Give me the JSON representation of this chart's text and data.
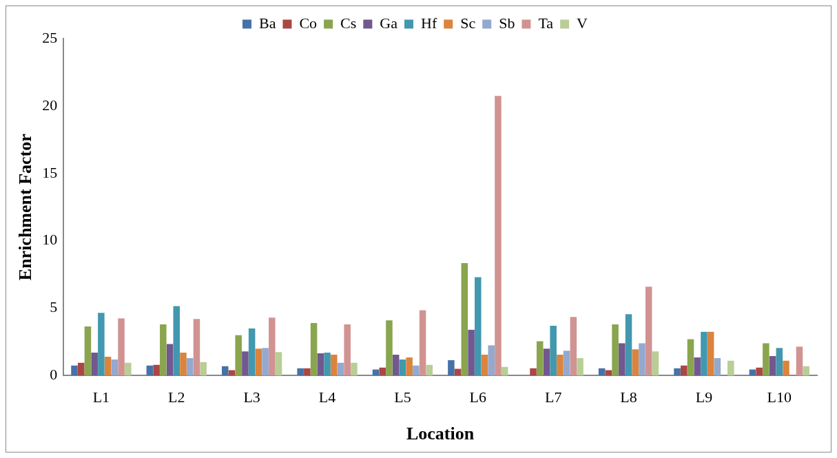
{
  "chart_data": {
    "type": "bar",
    "xlabel": "Location",
    "ylabel": "Enrichment Factor",
    "categories": [
      "L1",
      "L2",
      "L3",
      "L4",
      "L5",
      "L6",
      "L7",
      "L8",
      "L9",
      "L10"
    ],
    "series": [
      {
        "name": "Ba",
        "color": "#4572a7",
        "values": [
          0.75,
          0.75,
          0.7,
          0.55,
          0.45,
          1.15,
          null,
          0.55,
          0.55,
          0.45
        ]
      },
      {
        "name": "Co",
        "color": "#aa4643",
        "values": [
          0.95,
          0.8,
          0.4,
          0.55,
          0.6,
          0.5,
          0.55,
          0.4,
          0.75,
          0.6
        ]
      },
      {
        "name": "Cs",
        "color": "#89a54e",
        "values": [
          3.65,
          3.8,
          3.0,
          3.9,
          4.1,
          8.35,
          2.55,
          3.8,
          2.7,
          2.4
        ]
      },
      {
        "name": "Ga",
        "color": "#71588f",
        "values": [
          1.7,
          2.35,
          1.8,
          1.65,
          1.55,
          3.4,
          2.0,
          2.4,
          1.35,
          1.45
        ]
      },
      {
        "name": "Hf",
        "color": "#4198af",
        "values": [
          4.65,
          5.15,
          3.5,
          1.7,
          1.2,
          7.3,
          3.7,
          4.55,
          3.25,
          2.05
        ]
      },
      {
        "name": "Sc",
        "color": "#db843d",
        "values": [
          1.4,
          1.7,
          2.0,
          1.55,
          1.35,
          1.55,
          1.55,
          1.95,
          3.25,
          1.1
        ]
      },
      {
        "name": "Sb",
        "color": "#93a9cf",
        "values": [
          1.2,
          1.3,
          2.05,
          0.95,
          0.75,
          2.25,
          1.85,
          2.4,
          1.3,
          null
        ]
      },
      {
        "name": "Ta",
        "color": "#d19392",
        "values": [
          4.25,
          4.2,
          4.3,
          3.8,
          4.85,
          20.75,
          4.35,
          6.6,
          null,
          2.15
        ]
      },
      {
        "name": "V",
        "color": "#b9cd96",
        "values": [
          0.95,
          1.0,
          1.75,
          0.95,
          0.8,
          0.65,
          1.3,
          1.8,
          1.1,
          0.7
        ]
      }
    ],
    "ylim": [
      0,
      25
    ],
    "yticks": [
      0,
      5,
      10,
      15,
      20,
      25
    ],
    "grid": false,
    "legend": "top"
  }
}
